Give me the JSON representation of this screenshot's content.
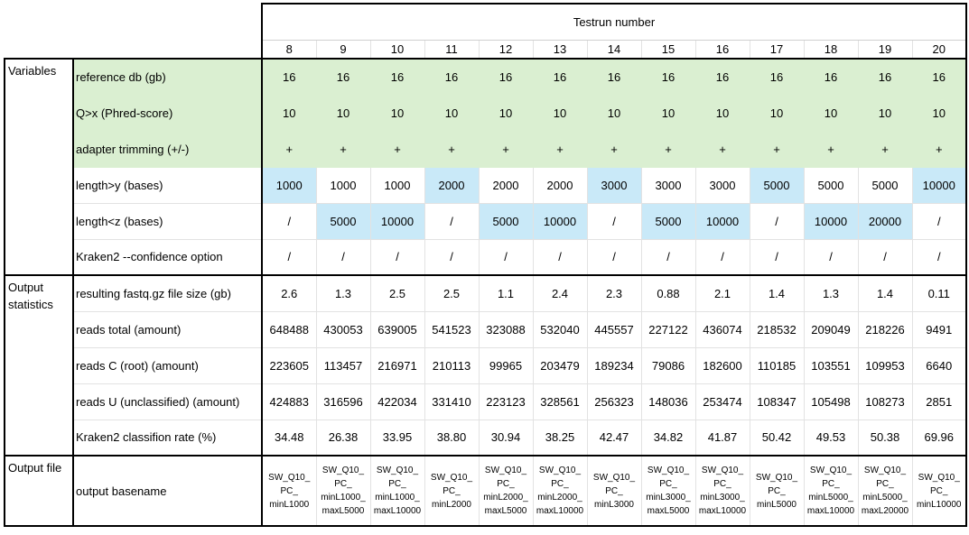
{
  "header": {
    "title": "Testrun number",
    "runs": [
      "8",
      "9",
      "10",
      "11",
      "12",
      "13",
      "14",
      "15",
      "16",
      "17",
      "18",
      "19",
      "20"
    ]
  },
  "groups": {
    "variables": "Variables",
    "output_statistics": "Output statistics",
    "output_file": "Output file"
  },
  "rows": {
    "ref_db": {
      "label": "reference db (gb)",
      "values": [
        "16",
        "16",
        "16",
        "16",
        "16",
        "16",
        "16",
        "16",
        "16",
        "16",
        "16",
        "16",
        "16"
      ]
    },
    "phred": {
      "label": "Q>x (Phred-score)",
      "values": [
        "10",
        "10",
        "10",
        "10",
        "10",
        "10",
        "10",
        "10",
        "10",
        "10",
        "10",
        "10",
        "10"
      ]
    },
    "adapter": {
      "label": "adapter trimming (+/-)",
      "values": [
        "+",
        "+",
        "+",
        "+",
        "+",
        "+",
        "+",
        "+",
        "+",
        "+",
        "+",
        "+",
        "+"
      ]
    },
    "min_len": {
      "label": "length>y (bases)",
      "values": [
        "1000",
        "1000",
        "1000",
        "2000",
        "2000",
        "2000",
        "3000",
        "3000",
        "3000",
        "5000",
        "5000",
        "5000",
        "10000"
      ],
      "highlight": [
        true,
        false,
        false,
        true,
        false,
        false,
        true,
        false,
        false,
        true,
        false,
        false,
        true
      ]
    },
    "max_len": {
      "label": "length<z (bases)",
      "values": [
        "/",
        "5000",
        "10000",
        "/",
        "5000",
        "10000",
        "/",
        "5000",
        "10000",
        "/",
        "10000",
        "20000",
        "/"
      ],
      "highlight": [
        false,
        true,
        true,
        false,
        true,
        true,
        false,
        true,
        true,
        false,
        true,
        true,
        false
      ]
    },
    "confidence": {
      "label": "Kraken2 --confidence option",
      "values": [
        "/",
        "/",
        "/",
        "/",
        "/",
        "/",
        "/",
        "/",
        "/",
        "/",
        "/",
        "/",
        "/"
      ]
    },
    "file_size": {
      "label": "resulting fastq.gz file size (gb)",
      "values": [
        "2.6",
        "1.3",
        "2.5",
        "2.5",
        "1.1",
        "2.4",
        "2.3",
        "0.88",
        "2.1",
        "1.4",
        "1.3",
        "1.4",
        "0.11"
      ]
    },
    "reads_total": {
      "label": "reads total (amount)",
      "values": [
        "648488",
        "430053",
        "639005",
        "541523",
        "323088",
        "532040",
        "445557",
        "227122",
        "436074",
        "218532",
        "209049",
        "218226",
        "9491"
      ]
    },
    "reads_c": {
      "label": "reads C (root) (amount)",
      "values": [
        "223605",
        "113457",
        "216971",
        "210113",
        "99965",
        "203479",
        "189234",
        "79086",
        "182600",
        "110185",
        "103551",
        "109953",
        "6640"
      ]
    },
    "reads_u": {
      "label": "reads U (unclassified) (amount)",
      "values": [
        "424883",
        "316596",
        "422034",
        "331410",
        "223123",
        "328561",
        "256323",
        "148036",
        "253474",
        "108347",
        "105498",
        "108273",
        "2851"
      ]
    },
    "class_rate": {
      "label": "Kraken2 classifion rate (%)",
      "values": [
        "34.48",
        "26.38",
        "33.95",
        "38.80",
        "30.94",
        "38.25",
        "42.47",
        "34.82",
        "41.87",
        "50.42",
        "49.53",
        "50.38",
        "69.96"
      ]
    },
    "basename": {
      "label": "output basename",
      "values": [
        [
          "SW_Q10_",
          "PC_",
          "minL1000"
        ],
        [
          "SW_Q10_",
          "PC_",
          "minL1000_",
          "maxL5000"
        ],
        [
          "SW_Q10_",
          "PC_",
          "minL1000_",
          "maxL10000"
        ],
        [
          "SW_Q10_",
          "PC_",
          "minL2000"
        ],
        [
          "SW_Q10_",
          "PC_",
          "minL2000_",
          "maxL5000"
        ],
        [
          "SW_Q10_",
          "PC_",
          "minL2000_",
          "maxL10000"
        ],
        [
          "SW_Q10_",
          "PC_",
          "minL3000"
        ],
        [
          "SW_Q10_",
          "PC_",
          "minL3000_",
          "maxL5000"
        ],
        [
          "SW_Q10_",
          "PC_",
          "minL3000_",
          "maxL10000"
        ],
        [
          "SW_Q10_",
          "PC_",
          "minL5000"
        ],
        [
          "SW_Q10_",
          "PC_",
          "minL5000_",
          "maxL10000"
        ],
        [
          "SW_Q10_",
          "PC_",
          "minL5000_",
          "maxL20000"
        ],
        [
          "SW_Q10_",
          "PC_",
          "minL10000"
        ]
      ]
    }
  },
  "colors": {
    "variable_fill": "#daefd1",
    "length_highlight": "#c9e9f8"
  }
}
